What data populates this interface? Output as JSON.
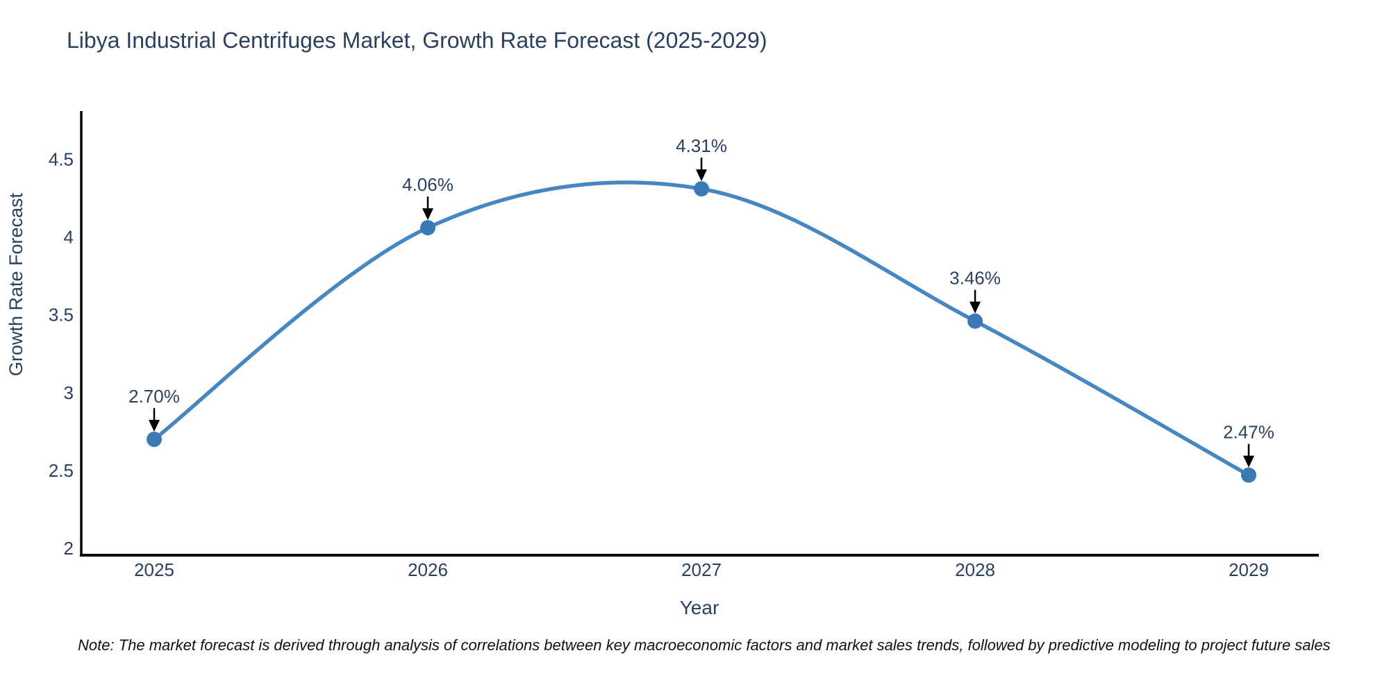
{
  "page": {
    "background": "#ffffff"
  },
  "chart_data": {
    "type": "line",
    "title": "Libya Industrial Centrifuges Market, Growth Rate Forecast (2025-2029)",
    "xlabel": "Year",
    "ylabel": "Growth Rate Forecast",
    "categories": [
      "2025",
      "2026",
      "2027",
      "2028",
      "2029"
    ],
    "series": [
      {
        "name": "Growth Rate Forecast",
        "values": [
          2.7,
          4.06,
          4.31,
          3.46,
          2.47
        ]
      }
    ],
    "point_labels": [
      "2.70%",
      "4.06%",
      "4.31%",
      "3.46%",
      "2.47%"
    ],
    "yticks": [
      "2",
      "2.5",
      "3",
      "3.5",
      "4",
      "4.5"
    ],
    "ytick_values": [
      2,
      2.5,
      3,
      3.5,
      4,
      4.5
    ],
    "ylim": [
      2,
      4.8
    ],
    "line_shape": "spline",
    "grid": false,
    "legend": false,
    "colors": {
      "line": "#4787c1",
      "marker": "#3b79b5",
      "axis": "#000000",
      "text": "#2a3f5f",
      "annotation_text": "#2a3f5f",
      "annotation_arrow": "#000000",
      "note_text": "#111111"
    },
    "note": "Note: The market forecast is derived through analysis of correlations between key macroeconomic factors and market sales trends, followed by predictive modeling to project future sales"
  }
}
